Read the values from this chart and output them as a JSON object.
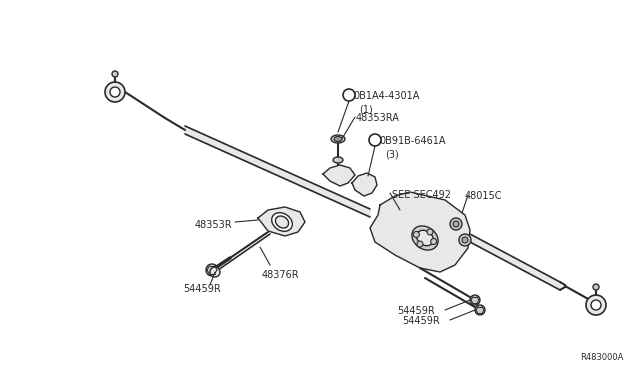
{
  "background_color": "#ffffff",
  "diagram_color": "#2a2a2a",
  "light_gray": "#aaaaaa",
  "mid_gray": "#888888",
  "light_fill": "#e8e8e8",
  "ref_text": "R483000A",
  "labels": {
    "B_part": "0B1A4-4301A",
    "B_sub": "(1)",
    "ra_label": "48353RA",
    "N_part": "0B91B-6461A",
    "N_sub": "(3)",
    "sec": "SEE SEC492",
    "c48015": "48015C",
    "r48353": "48353R",
    "r48376": "48376R",
    "r54459_a": "54459R",
    "r54459_b": "54459R",
    "r54459_c": "54459R"
  },
  "font_size": 7.0
}
